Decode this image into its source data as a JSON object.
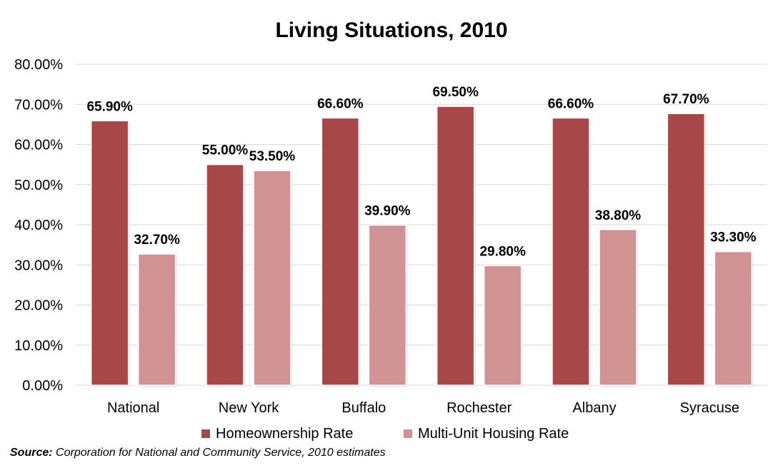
{
  "chart_data": {
    "type": "bar",
    "title": "Living Situations, 2010",
    "categories": [
      "National",
      "New York",
      "Buffalo",
      "Rochester",
      "Albany",
      "Syracuse"
    ],
    "series": [
      {
        "name": "Homeownership Rate",
        "color": "#a84747",
        "values": [
          65.9,
          55.0,
          66.6,
          69.5,
          66.6,
          67.7
        ],
        "labels": [
          "65.90%",
          "55.00%",
          "66.60%",
          "69.50%",
          "66.60%",
          "67.70%"
        ]
      },
      {
        "name": "Multi-Unit Housing Rate",
        "color": "#d09292",
        "values": [
          32.7,
          53.5,
          39.9,
          29.8,
          38.8,
          33.3
        ],
        "labels": [
          "32.70%",
          "53.50%",
          "39.90%",
          "29.80%",
          "38.80%",
          "33.30%"
        ]
      }
    ],
    "ylim": [
      0,
      80
    ],
    "yticks": [
      "0.00%",
      "10.00%",
      "20.00%",
      "30.00%",
      "40.00%",
      "50.00%",
      "60.00%",
      "70.00%",
      "80.00%"
    ],
    "ytick_values": [
      0,
      10,
      20,
      30,
      40,
      50,
      60,
      70,
      80
    ],
    "grid": true,
    "legend_position": "bottom",
    "xlabel": "",
    "ylabel": ""
  },
  "source": {
    "label": "Source:",
    "text": "Corporation for National and Community Service, 2010 estimates"
  }
}
